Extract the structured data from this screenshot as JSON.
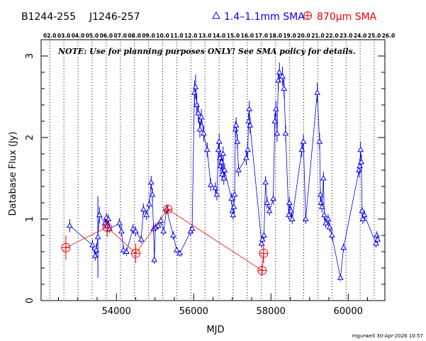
{
  "header": {
    "source_a": "B1244-255",
    "source_b": "J1246-257",
    "legend_blue_label": "1.4–1.1mm SMA",
    "legend_red_label": "870μm SMA"
  },
  "note": "NOTE: Use for planning purposes ONLY!  See SMA policy for details.",
  "footer": "mgurwell 30-Apr-2026 10:57",
  "colors": {
    "blue": "#0000ee",
    "red": "#ee0000",
    "axis": "#000000"
  },
  "chart_data": {
    "type": "scatter",
    "xlabel": "MJD",
    "ylabel": "Database Flux (Jy)",
    "xlim": [
      52050,
      60950
    ],
    "ylim": [
      0,
      3.2
    ],
    "xticks": [
      54000,
      56000,
      58000,
      60000
    ],
    "yticks": [
      0,
      1,
      2,
      3
    ],
    "top_year_labels": [
      "02.0",
      "03.0",
      "04.0",
      "05.0",
      "06.0",
      "07.0",
      "08.0",
      "09.0",
      "10.0",
      "11.0",
      "12.0",
      "13.0",
      "14.0",
      "15.0",
      "16.0",
      "17.0",
      "18.0",
      "19.0",
      "20.0",
      "21.0",
      "22.0",
      "23.0",
      "24.0",
      "25.0",
      "26.0"
    ],
    "top_year_mjd": [
      52275,
      52640,
      53005,
      53371,
      53736,
      54101,
      54466,
      54832,
      55197,
      55562,
      55927,
      56293,
      56658,
      57023,
      57388,
      57754,
      58119,
      58484,
      58849,
      59215,
      59580,
      59945,
      60310,
      60676,
      61041
    ],
    "grid": "vertical dotted at year boundaries",
    "series": [
      {
        "name": "1.4–1.1mm SMA",
        "marker": "triangle",
        "color": "#0000ee",
        "connected": true,
        "points": [
          [
            52790,
            0.92,
            0.08
          ],
          [
            53380,
            0.68,
            0.07
          ],
          [
            53450,
            0.55,
            0.06
          ],
          [
            53480,
            0.62,
            0.08
          ],
          [
            53520,
            0.78,
            0.5
          ],
          [
            53560,
            1.05,
            0.1
          ],
          [
            53700,
            0.95,
            0.06
          ],
          [
            53740,
            1.02,
            0.06
          ],
          [
            53760,
            0.92,
            0.06
          ],
          [
            53790,
            1.0,
            0.06
          ],
          [
            53820,
            0.88,
            0.05
          ],
          [
            54080,
            0.95,
            0.06
          ],
          [
            54130,
            0.85,
            0.06
          ],
          [
            54180,
            0.62,
            0.06
          ],
          [
            54260,
            0.6,
            0.05
          ],
          [
            54430,
            0.88,
            0.06
          ],
          [
            54500,
            0.85,
            0.06
          ],
          [
            54640,
            0.75,
            0.05
          ],
          [
            54700,
            1.12,
            0.07
          ],
          [
            54780,
            1.05,
            0.06
          ],
          [
            54850,
            1.18,
            0.06
          ],
          [
            54900,
            1.45,
            0.08
          ],
          [
            54930,
            1.3,
            0.08
          ],
          [
            54960,
            0.88,
            0.06
          ],
          [
            54980,
            0.5,
            0.05
          ],
          [
            55010,
            0.9,
            0.05
          ],
          [
            55080,
            0.92,
            0.05
          ],
          [
            55150,
            0.98,
            0.05
          ],
          [
            55220,
            0.85,
            0.05
          ],
          [
            55300,
            1.12,
            0.05
          ],
          [
            55470,
            0.8,
            0.05
          ],
          [
            55560,
            0.62,
            0.04
          ],
          [
            55640,
            0.58,
            0.04
          ],
          [
            55920,
            0.85,
            0.06
          ],
          [
            55960,
            0.88,
            0.06
          ],
          [
            56020,
            2.55,
            0.15
          ],
          [
            56050,
            2.62,
            0.15
          ],
          [
            56080,
            2.4,
            0.12
          ],
          [
            56120,
            2.3,
            0.12
          ],
          [
            56160,
            2.1,
            0.1
          ],
          [
            56200,
            2.25,
            0.1
          ],
          [
            56260,
            2.05,
            0.1
          ],
          [
            56350,
            1.85,
            0.09
          ],
          [
            56440,
            1.42,
            0.08
          ],
          [
            56560,
            1.38,
            0.07
          ],
          [
            56600,
            1.3,
            0.07
          ],
          [
            56640,
            1.85,
            0.1
          ],
          [
            56660,
            1.95,
            0.1
          ],
          [
            56680,
            1.75,
            0.09
          ],
          [
            56700,
            1.65,
            0.09
          ],
          [
            56720,
            1.7,
            0.09
          ],
          [
            56740,
            1.55,
            0.08
          ],
          [
            56760,
            1.8,
            0.09
          ],
          [
            56780,
            1.5,
            0.08
          ],
          [
            56800,
            1.6,
            0.08
          ],
          [
            56980,
            1.25,
            0.07
          ],
          [
            57000,
            1.1,
            0.07
          ],
          [
            57020,
            1.05,
            0.06
          ],
          [
            57040,
            1.15,
            0.07
          ],
          [
            57060,
            1.3,
            0.07
          ],
          [
            57080,
            2.1,
            0.1
          ],
          [
            57100,
            2.15,
            0.1
          ],
          [
            57130,
            1.95,
            0.09
          ],
          [
            57160,
            1.6,
            0.08
          ],
          [
            57360,
            1.75,
            0.09
          ],
          [
            57400,
            1.85,
            0.09
          ],
          [
            57420,
            2.2,
            0.1
          ],
          [
            57440,
            2.35,
            0.1
          ],
          [
            57460,
            2.15,
            0.1
          ],
          [
            57760,
            0.7,
            0.05
          ],
          [
            57780,
            0.75,
            0.05
          ],
          [
            57820,
            0.8,
            0.05
          ],
          [
            57860,
            1.45,
            0.08
          ],
          [
            57900,
            1.2,
            0.07
          ],
          [
            57960,
            1.1,
            0.06
          ],
          [
            58060,
            1.25,
            0.07
          ],
          [
            58100,
            2.2,
            0.1
          ],
          [
            58130,
            2.35,
            0.1
          ],
          [
            58160,
            2.05,
            0.1
          ],
          [
            58190,
            2.7,
            0.12
          ],
          [
            58220,
            2.8,
            0.12
          ],
          [
            58300,
            2.75,
            0.12
          ],
          [
            58340,
            2.6,
            0.12
          ],
          [
            58380,
            2.05,
            0.1
          ],
          [
            58460,
            1.05,
            0.06
          ],
          [
            58480,
            1.2,
            0.07
          ],
          [
            58520,
            1.1,
            0.06
          ],
          [
            58550,
            1.0,
            0.06
          ],
          [
            58800,
            1.85,
            0.09
          ],
          [
            58840,
            1.95,
            0.09
          ],
          [
            58900,
            1.0,
            0.06
          ],
          [
            59200,
            2.55,
            0.12
          ],
          [
            59260,
            1.95,
            0.1
          ],
          [
            59280,
            1.3,
            0.08
          ],
          [
            59300,
            1.2,
            0.07
          ],
          [
            59320,
            1.15,
            0.07
          ],
          [
            59360,
            1.5,
            0.08
          ],
          [
            59380,
            1.05,
            0.07
          ],
          [
            59420,
            0.95,
            0.06
          ],
          [
            59480,
            1.0,
            0.06
          ],
          [
            59520,
            0.9,
            0.06
          ],
          [
            59580,
            0.8,
            0.06
          ],
          [
            59800,
            0.28,
            0.04
          ],
          [
            59880,
            0.65,
            0.05
          ],
          [
            60280,
            1.6,
            0.09
          ],
          [
            60300,
            1.65,
            0.09
          ],
          [
            60320,
            1.85,
            0.1
          ],
          [
            60340,
            1.7,
            0.09
          ],
          [
            60360,
            1.1,
            0.06
          ],
          [
            60380,
            1.0,
            0.06
          ],
          [
            60420,
            1.05,
            0.06
          ],
          [
            60720,
            0.7,
            0.05
          ],
          [
            60740,
            0.8,
            0.05
          ],
          [
            60760,
            0.75,
            0.05
          ]
        ]
      },
      {
        "name": "870μm SMA",
        "marker": "circle-plus",
        "color": "#ee0000",
        "connected": true,
        "points": [
          [
            52690,
            0.65,
            0.15
          ],
          [
            53760,
            0.9,
            0.12
          ],
          [
            54500,
            0.58,
            0.12
          ],
          [
            55330,
            1.12,
            0.06
          ],
          [
            57770,
            0.37,
            0.06
          ],
          [
            57810,
            0.58,
            0.12
          ]
        ]
      }
    ]
  }
}
